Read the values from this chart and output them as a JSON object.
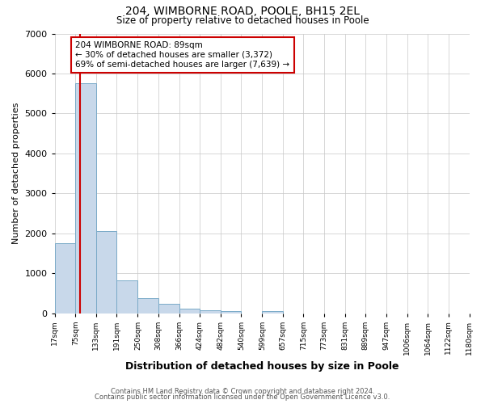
{
  "title": "204, WIMBORNE ROAD, POOLE, BH15 2EL",
  "subtitle": "Size of property relative to detached houses in Poole",
  "xlabel": "Distribution of detached houses by size in Poole",
  "ylabel": "Number of detached properties",
  "bar_values": [
    1750,
    5750,
    2050,
    820,
    370,
    230,
    110,
    70,
    50,
    0,
    60,
    0,
    0,
    0,
    0,
    0,
    0,
    0,
    0,
    0
  ],
  "bin_labels": [
    "17sqm",
    "75sqm",
    "133sqm",
    "191sqm",
    "250sqm",
    "308sqm",
    "366sqm",
    "424sqm",
    "482sqm",
    "540sqm",
    "599sqm",
    "657sqm",
    "715sqm",
    "773sqm",
    "831sqm",
    "889sqm",
    "947sqm",
    "1006sqm",
    "1064sqm",
    "1122sqm",
    "1180sqm"
  ],
  "bar_color": "#c8d8ea",
  "bar_edge_color": "#7aaac8",
  "vline_x": 89,
  "bin_edges": [
    17,
    75,
    133,
    191,
    250,
    308,
    366,
    424,
    482,
    540,
    599,
    657,
    715,
    773,
    831,
    889,
    947,
    1006,
    1064,
    1122,
    1180
  ],
  "ylim": [
    0,
    7000
  ],
  "yticks": [
    0,
    1000,
    2000,
    3000,
    4000,
    5000,
    6000,
    7000
  ],
  "annotation_title": "204 WIMBORNE ROAD: 89sqm",
  "annotation_line1": "← 30% of detached houses are smaller (3,372)",
  "annotation_line2": "69% of semi-detached houses are larger (7,639) →",
  "vline_color": "#cc0000",
  "annotation_box_color": "#ffffff",
  "annotation_box_edge": "#cc0000",
  "footer1": "Contains HM Land Registry data © Crown copyright and database right 2024.",
  "footer2": "Contains public sector information licensed under the Open Government Licence v3.0.",
  "background_color": "#ffffff",
  "grid_color": "#c8c8c8"
}
